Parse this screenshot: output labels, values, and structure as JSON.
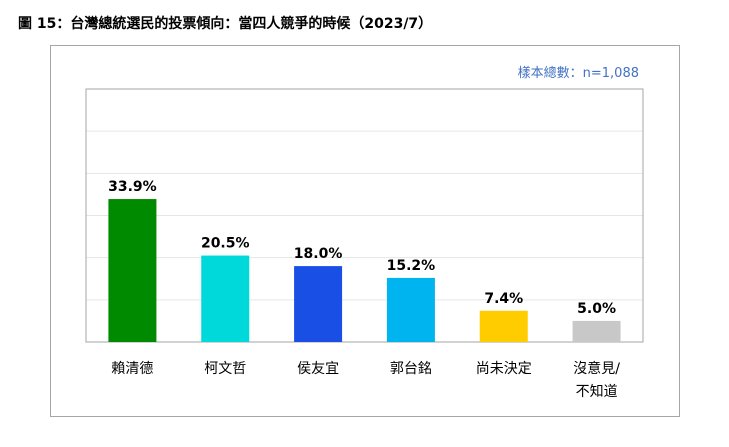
{
  "figure_title": "圖 15：台灣總統選民的投票傾向：當四人競爭的時候（2023/7）",
  "sample_note": "樣本總數：n=1,088",
  "chart_data": {
    "type": "bar",
    "categories": [
      [
        "賴清德"
      ],
      [
        "柯文哲"
      ],
      [
        "侯友宜"
      ],
      [
        "郭台銘"
      ],
      [
        "尚未決定"
      ],
      [
        "沒意見/",
        "不知道"
      ]
    ],
    "values": [
      33.9,
      20.5,
      18.0,
      15.2,
      7.4,
      5.0
    ],
    "value_labels": [
      "33.9%",
      "20.5%",
      "18.0%",
      "15.2%",
      "7.4%",
      "5.0%"
    ],
    "colors": [
      "#008a00",
      "#00d9d9",
      "#1a4fe6",
      "#00b4f0",
      "#ffcc00",
      "#c8c8c8"
    ],
    "ylim": [
      0,
      60
    ],
    "grid": true,
    "gridline_step": 10,
    "title": "",
    "xlabel": "",
    "ylabel": ""
  }
}
